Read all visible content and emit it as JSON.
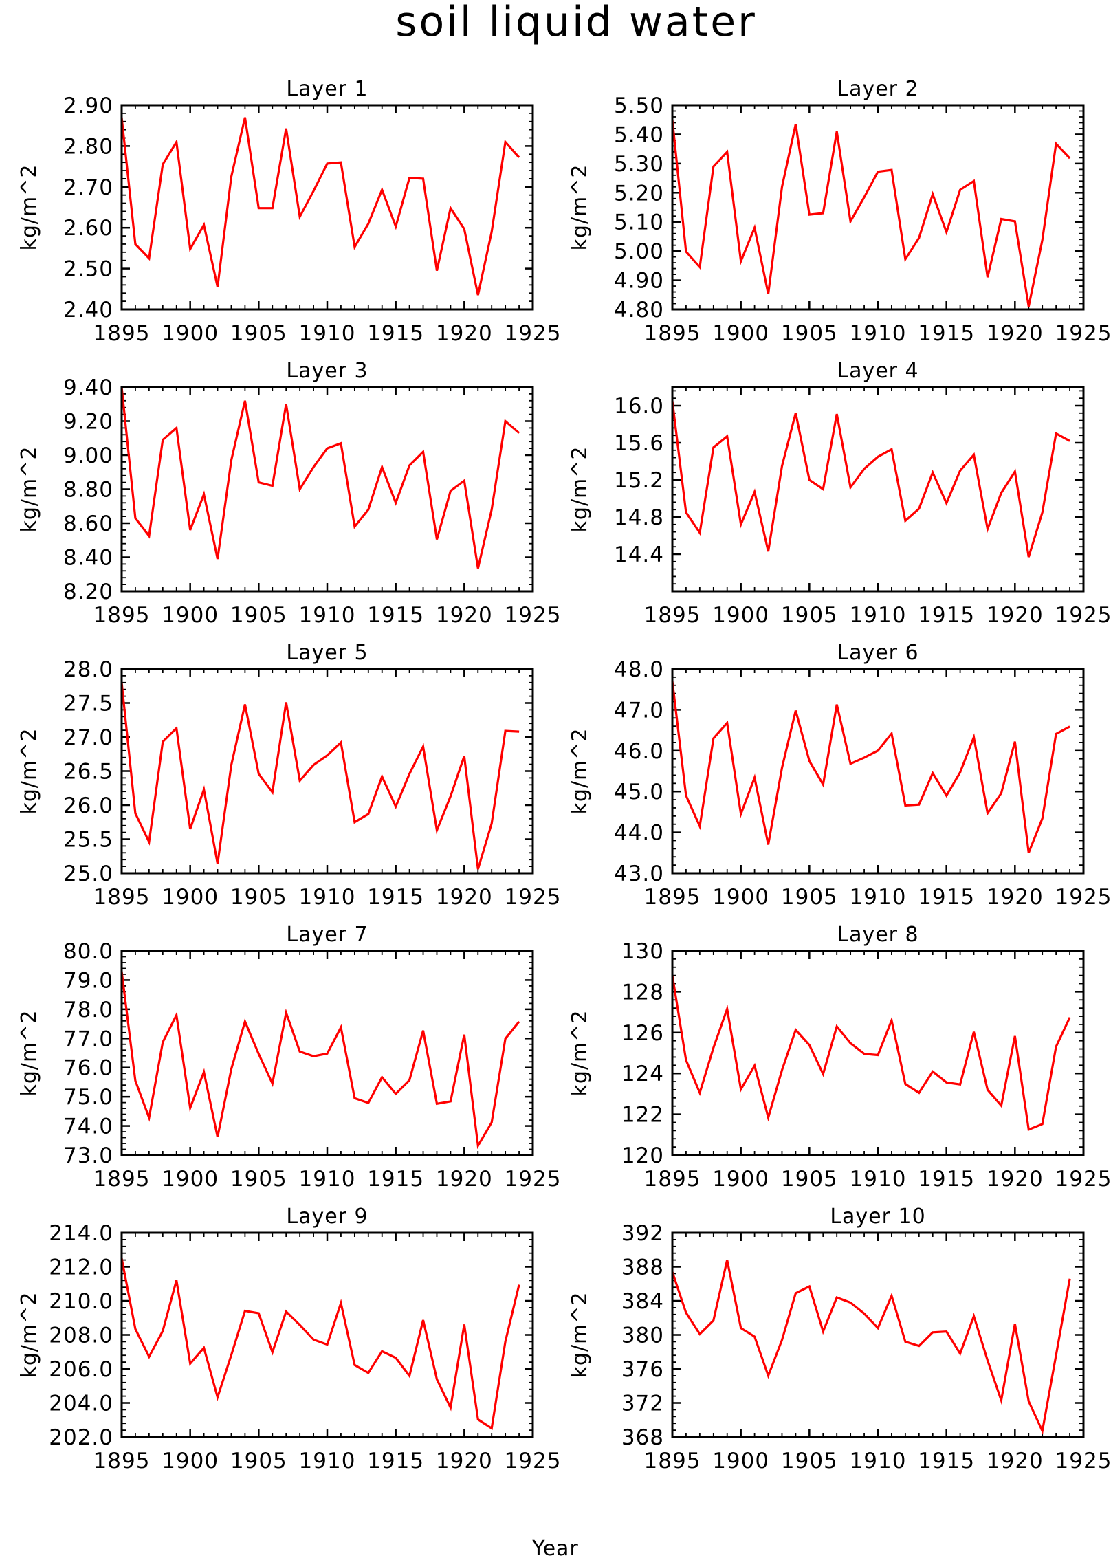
{
  "title": "soil liquid water",
  "footer": "Year",
  "chart_data": [
    {
      "type": "line",
      "title": "Layer 1",
      "xlabel": "",
      "ylabel": "kg/m^2",
      "xlim": [
        1895,
        1925
      ],
      "xticks": [
        "1895",
        "1900",
        "1905",
        "1910",
        "1915",
        "1920",
        "1925"
      ],
      "ylim": [
        2.4,
        2.9
      ],
      "yticks": [
        "2.40",
        "2.50",
        "2.60",
        "2.70",
        "2.80",
        "2.90"
      ],
      "x": [
        1895,
        1896,
        1897,
        1898,
        1899,
        1900,
        1901,
        1902,
        1903,
        1904,
        1905,
        1906,
        1907,
        1908,
        1909,
        1910,
        1911,
        1912,
        1913,
        1914,
        1915,
        1916,
        1917,
        1918,
        1919,
        1920,
        1921,
        1922,
        1923,
        1924
      ],
      "series": [
        {
          "values": [
            2.87,
            2.56,
            2.525,
            2.755,
            2.81,
            2.548,
            2.607,
            2.455,
            2.725,
            2.87,
            2.648,
            2.648,
            2.843,
            2.627,
            2.69,
            2.757,
            2.76,
            2.553,
            2.61,
            2.693,
            2.603,
            2.722,
            2.72,
            2.495,
            2.648,
            2.597,
            2.435,
            2.59,
            2.81,
            2.772
          ]
        }
      ]
    },
    {
      "type": "line",
      "title": "Layer 2",
      "xlabel": "",
      "ylabel": "kg/m^2",
      "xlim": [
        1895,
        1925
      ],
      "xticks": [
        "1895",
        "1900",
        "1905",
        "1910",
        "1915",
        "1920",
        "1925"
      ],
      "ylim": [
        4.8,
        5.5
      ],
      "yticks": [
        "4.80",
        "4.90",
        "5.00",
        "5.10",
        "5.20",
        "5.30",
        "5.40",
        "5.50"
      ],
      "x": [
        1895,
        1896,
        1897,
        1898,
        1899,
        1900,
        1901,
        1902,
        1903,
        1904,
        1905,
        1906,
        1907,
        1908,
        1909,
        1910,
        1911,
        1912,
        1913,
        1914,
        1915,
        1916,
        1917,
        1918,
        1919,
        1920,
        1921,
        1922,
        1923,
        1924
      ],
      "series": [
        {
          "values": [
            5.45,
            4.998,
            4.945,
            5.29,
            5.34,
            4.965,
            5.08,
            4.853,
            5.22,
            5.435,
            5.125,
            5.13,
            5.41,
            5.102,
            5.185,
            5.272,
            5.278,
            4.972,
            5.045,
            5.195,
            5.065,
            5.21,
            5.24,
            4.91,
            5.11,
            5.102,
            4.81,
            5.038,
            5.368,
            5.318
          ]
        }
      ]
    },
    {
      "type": "line",
      "title": "Layer 3",
      "xlabel": "",
      "ylabel": "kg/m^2",
      "xlim": [
        1895,
        1925
      ],
      "xticks": [
        "1895",
        "1900",
        "1905",
        "1910",
        "1915",
        "1920",
        "1925"
      ],
      "ylim": [
        8.2,
        9.4
      ],
      "yticks": [
        "8.20",
        "8.40",
        "8.60",
        "8.80",
        "9.00",
        "9.20",
        "9.40"
      ],
      "x": [
        1895,
        1896,
        1897,
        1898,
        1899,
        1900,
        1901,
        1902,
        1903,
        1904,
        1905,
        1906,
        1907,
        1908,
        1909,
        1910,
        1911,
        1912,
        1913,
        1914,
        1915,
        1916,
        1917,
        1918,
        1919,
        1920,
        1921,
        1922,
        1923,
        1924
      ],
      "series": [
        {
          "values": [
            9.4,
            8.63,
            8.525,
            9.09,
            9.16,
            8.56,
            8.77,
            8.39,
            8.97,
            9.32,
            8.84,
            8.82,
            9.3,
            8.8,
            8.93,
            9.04,
            9.07,
            8.58,
            8.68,
            8.93,
            8.72,
            8.94,
            9.02,
            8.505,
            8.79,
            8.85,
            8.335,
            8.68,
            9.2,
            9.13
          ]
        }
      ]
    },
    {
      "type": "line",
      "title": "Layer 4",
      "xlabel": "",
      "ylabel": "kg/m^2",
      "xlim": [
        1895,
        1925
      ],
      "xticks": [
        "1895",
        "1900",
        "1905",
        "1910",
        "1915",
        "1920",
        "1925"
      ],
      "ylim": [
        14.0,
        16.2
      ],
      "yticks": [
        "14.4",
        "14.8",
        "15.2",
        "15.6",
        "16.0"
      ],
      "x": [
        1895,
        1896,
        1897,
        1898,
        1899,
        1900,
        1901,
        1902,
        1903,
        1904,
        1905,
        1906,
        1907,
        1908,
        1909,
        1910,
        1911,
        1912,
        1913,
        1914,
        1915,
        1916,
        1917,
        1918,
        1919,
        1920,
        1921,
        1922,
        1923,
        1924
      ],
      "series": [
        {
          "values": [
            16.05,
            14.85,
            14.63,
            15.55,
            15.67,
            14.72,
            15.07,
            14.43,
            15.35,
            15.92,
            15.2,
            15.1,
            15.91,
            15.12,
            15.32,
            15.45,
            15.53,
            14.76,
            14.89,
            15.28,
            14.95,
            15.3,
            15.47,
            14.67,
            15.06,
            15.29,
            14.37,
            14.85,
            15.7,
            15.62
          ]
        }
      ]
    },
    {
      "type": "line",
      "title": "Layer 5",
      "xlabel": "",
      "ylabel": "kg/m^2",
      "xlim": [
        1895,
        1925
      ],
      "xticks": [
        "1895",
        "1900",
        "1905",
        "1910",
        "1915",
        "1920",
        "1925"
      ],
      "ylim": [
        25.0,
        28.0
      ],
      "yticks": [
        "25.0",
        "25.5",
        "26.0",
        "26.5",
        "27.0",
        "27.5",
        "28.0"
      ],
      "x": [
        1895,
        1896,
        1897,
        1898,
        1899,
        1900,
        1901,
        1902,
        1903,
        1904,
        1905,
        1906,
        1907,
        1908,
        1909,
        1910,
        1911,
        1912,
        1913,
        1914,
        1915,
        1916,
        1917,
        1918,
        1919,
        1920,
        1921,
        1922,
        1923,
        1924
      ],
      "series": [
        {
          "values": [
            27.8,
            25.88,
            25.46,
            26.93,
            27.13,
            25.65,
            26.23,
            25.14,
            26.59,
            27.48,
            26.46,
            26.19,
            27.51,
            26.36,
            26.59,
            26.73,
            26.92,
            25.75,
            25.87,
            26.42,
            25.98,
            26.46,
            26.86,
            25.63,
            26.13,
            26.72,
            25.06,
            25.73,
            27.09,
            27.08
          ]
        }
      ]
    },
    {
      "type": "line",
      "title": "Layer 6",
      "xlabel": "",
      "ylabel": "kg/m^2",
      "xlim": [
        1895,
        1925
      ],
      "xticks": [
        "1895",
        "1900",
        "1905",
        "1910",
        "1915",
        "1920",
        "1925"
      ],
      "ylim": [
        43.0,
        48.0
      ],
      "yticks": [
        "43.0",
        "44.0",
        "45.0",
        "46.0",
        "47.0",
        "48.0"
      ],
      "x": [
        1895,
        1896,
        1897,
        1898,
        1899,
        1900,
        1901,
        1902,
        1903,
        1904,
        1905,
        1906,
        1907,
        1908,
        1909,
        1910,
        1911,
        1912,
        1913,
        1914,
        1915,
        1916,
        1917,
        1918,
        1919,
        1920,
        1921,
        1922,
        1923,
        1924
      ],
      "series": [
        {
          "values": [
            47.7,
            44.9,
            44.15,
            46.3,
            46.68,
            44.45,
            45.34,
            43.7,
            45.58,
            46.98,
            45.75,
            45.17,
            47.13,
            45.68,
            45.83,
            46.0,
            46.42,
            44.66,
            44.68,
            45.45,
            44.9,
            45.47,
            46.33,
            44.47,
            44.96,
            46.22,
            43.5,
            44.34,
            46.41,
            46.59
          ]
        }
      ]
    },
    {
      "type": "line",
      "title": "Layer 7",
      "xlabel": "",
      "ylabel": "kg/m^2",
      "xlim": [
        1895,
        1925
      ],
      "xticks": [
        "1895",
        "1900",
        "1905",
        "1910",
        "1915",
        "1920",
        "1925"
      ],
      "ylim": [
        73.0,
        80.0
      ],
      "yticks": [
        "73.0",
        "74.0",
        "75.0",
        "76.0",
        "77.0",
        "78.0",
        "79.0",
        "80.0"
      ],
      "x": [
        1895,
        1896,
        1897,
        1898,
        1899,
        1900,
        1901,
        1902,
        1903,
        1904,
        1905,
        1906,
        1907,
        1908,
        1909,
        1910,
        1911,
        1912,
        1913,
        1914,
        1915,
        1916,
        1917,
        1918,
        1919,
        1920,
        1921,
        1922,
        1923,
        1924
      ],
      "series": [
        {
          "values": [
            79.3,
            75.55,
            74.28,
            76.87,
            77.8,
            74.62,
            75.85,
            73.62,
            75.95,
            77.58,
            76.47,
            75.45,
            77.88,
            76.55,
            76.39,
            76.48,
            77.38,
            74.95,
            74.79,
            75.67,
            75.1,
            75.57,
            77.27,
            74.76,
            74.84,
            77.13,
            73.32,
            74.12,
            76.99,
            77.58
          ]
        }
      ]
    },
    {
      "type": "line",
      "title": "Layer 8",
      "xlabel": "",
      "ylabel": "kg/m^2",
      "xlim": [
        1895,
        1925
      ],
      "xticks": [
        "1895",
        "1900",
        "1905",
        "1910",
        "1915",
        "1920",
        "1925"
      ],
      "ylim": [
        120,
        130
      ],
      "yticks": [
        "120",
        "122",
        "124",
        "126",
        "128",
        "130"
      ],
      "x": [
        1895,
        1896,
        1897,
        1898,
        1899,
        1900,
        1901,
        1902,
        1903,
        1904,
        1905,
        1906,
        1907,
        1908,
        1909,
        1910,
        1911,
        1912,
        1913,
        1914,
        1915,
        1916,
        1917,
        1918,
        1919,
        1920,
        1921,
        1922,
        1923,
        1924
      ],
      "series": [
        {
          "values": [
            128.8,
            124.65,
            123.05,
            125.26,
            127.16,
            123.22,
            124.38,
            121.84,
            124.16,
            126.13,
            125.39,
            123.97,
            126.3,
            125.48,
            124.96,
            124.9,
            126.6,
            123.48,
            123.05,
            124.09,
            123.56,
            123.46,
            126.04,
            123.2,
            122.42,
            125.83,
            121.25,
            121.52,
            125.31,
            126.74
          ]
        }
      ]
    },
    {
      "type": "line",
      "title": "Layer 9",
      "xlabel": "",
      "ylabel": "kg/m^2",
      "xlim": [
        1895,
        1925
      ],
      "xticks": [
        "1895",
        "1900",
        "1905",
        "1910",
        "1915",
        "1920",
        "1925"
      ],
      "ylim": [
        202.0,
        214.0
      ],
      "yticks": [
        "202.0",
        "204.0",
        "206.0",
        "208.0",
        "210.0",
        "212.0",
        "214.0"
      ],
      "x": [
        1895,
        1896,
        1897,
        1898,
        1899,
        1900,
        1901,
        1902,
        1903,
        1904,
        1905,
        1906,
        1907,
        1908,
        1909,
        1910,
        1911,
        1912,
        1913,
        1914,
        1915,
        1916,
        1917,
        1918,
        1919,
        1920,
        1921,
        1922,
        1923,
        1924
      ],
      "series": [
        {
          "values": [
            212.5,
            208.35,
            206.72,
            208.23,
            211.21,
            206.31,
            207.24,
            204.33,
            206.82,
            209.41,
            209.27,
            206.98,
            209.37,
            208.58,
            207.72,
            207.43,
            209.87,
            206.23,
            205.76,
            207.04,
            206.65,
            205.59,
            208.87,
            205.39,
            203.72,
            208.61,
            203.03,
            202.51,
            207.61,
            210.95
          ]
        }
      ]
    },
    {
      "type": "line",
      "title": "Layer 10",
      "xlabel": "",
      "ylabel": "kg/m^2",
      "xlim": [
        1895,
        1925
      ],
      "xticks": [
        "1895",
        "1900",
        "1905",
        "1910",
        "1915",
        "1920",
        "1925"
      ],
      "ylim": [
        368,
        392
      ],
      "yticks": [
        "368",
        "372",
        "376",
        "380",
        "384",
        "388",
        "392"
      ],
      "x": [
        1895,
        1896,
        1897,
        1898,
        1899,
        1900,
        1901,
        1902,
        1903,
        1904,
        1905,
        1906,
        1907,
        1908,
        1909,
        1910,
        1911,
        1912,
        1913,
        1914,
        1915,
        1916,
        1917,
        1918,
        1919,
        1920,
        1921,
        1922,
        1923,
        1924
      ],
      "series": [
        {
          "values": [
            387.4,
            382.6,
            380.1,
            381.7,
            388.8,
            380.8,
            379.8,
            375.2,
            379.4,
            384.9,
            385.7,
            380.4,
            384.4,
            383.8,
            382.5,
            380.8,
            384.6,
            379.2,
            378.7,
            380.3,
            380.4,
            377.8,
            382.2,
            377.0,
            372.3,
            381.3,
            372.2,
            368.7,
            377.6,
            386.6
          ]
        }
      ]
    }
  ]
}
